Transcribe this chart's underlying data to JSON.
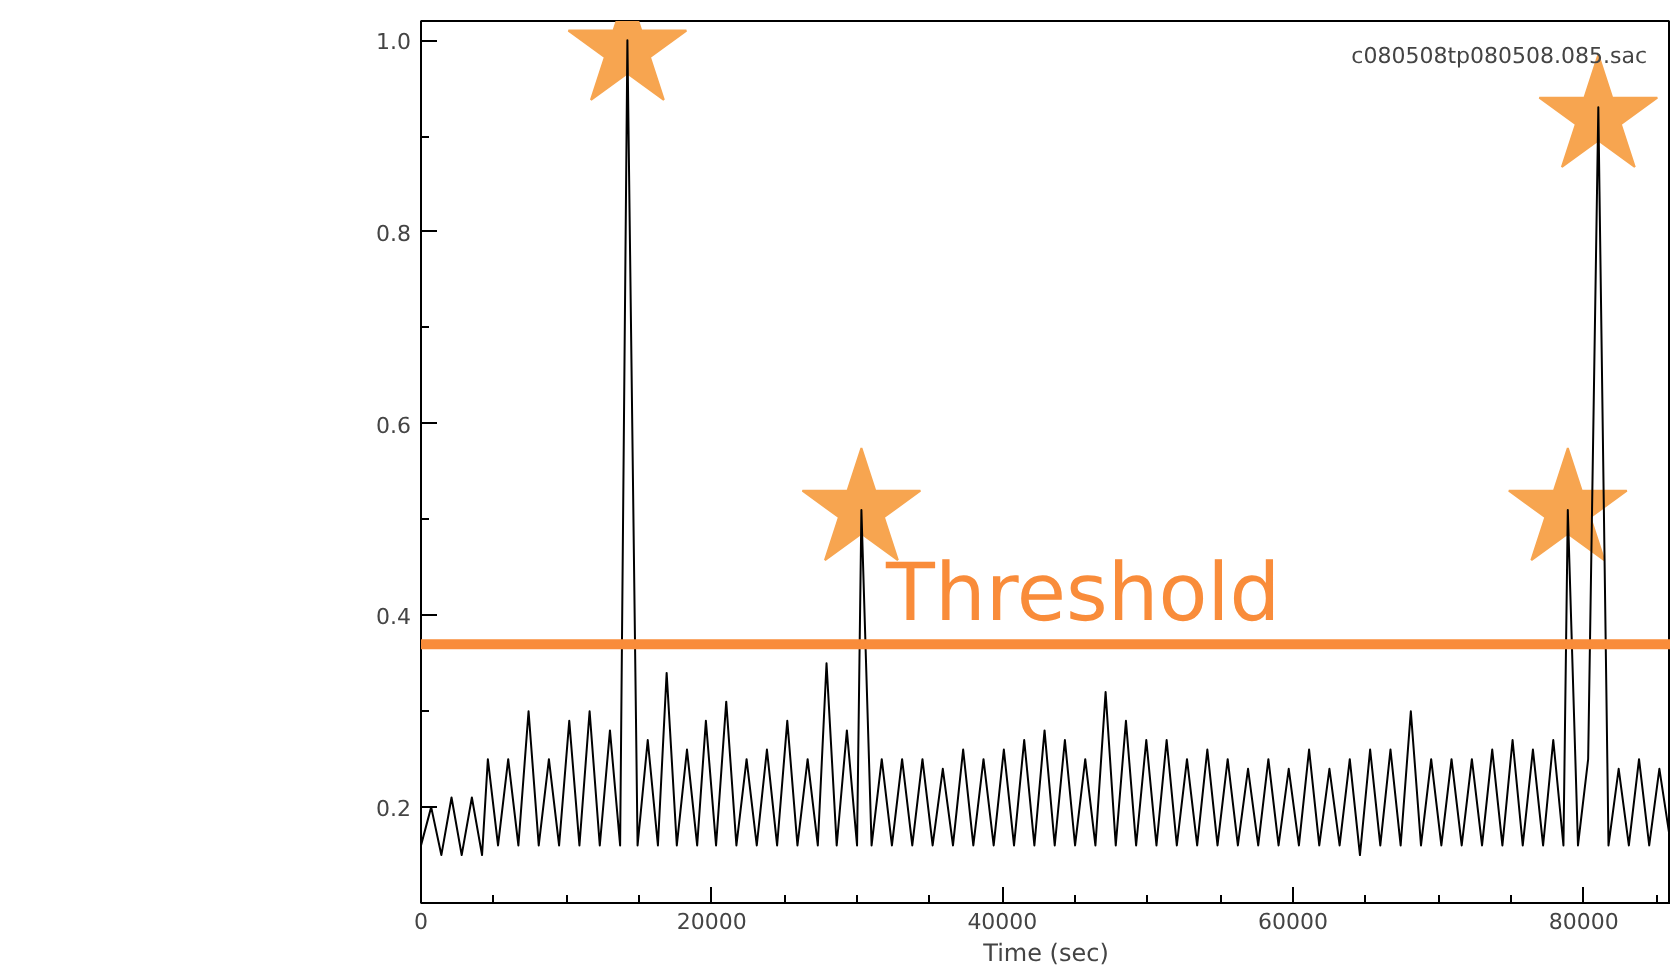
{
  "chart_data": {
    "type": "line",
    "xlabel": "Time (sec)",
    "xlim": [
      0,
      86000
    ],
    "ylim": [
      0.1,
      1.02
    ],
    "xticks": [
      0,
      20000,
      40000,
      60000,
      80000
    ],
    "yticks": [
      0.2,
      0.4,
      0.6,
      0.8,
      {
        "value": 1.0,
        "label": "1.0"
      }
    ],
    "grid": false,
    "series": [
      {
        "color": "#000000",
        "x": [
          0,
          700,
          1400,
          2100,
          2800,
          3500,
          4200,
          4600,
          5300,
          6000,
          6700,
          7400,
          8100,
          8800,
          9500,
          10200,
          10900,
          11600,
          12300,
          13000,
          13700,
          14200,
          14900,
          15600,
          16300,
          16900,
          17600,
          18300,
          19000,
          19600,
          20300,
          21000,
          21700,
          22400,
          23100,
          23800,
          24500,
          25200,
          25900,
          26600,
          27300,
          27900,
          28600,
          29300,
          30000,
          30300,
          31000,
          31700,
          32400,
          33100,
          33800,
          34500,
          35200,
          35900,
          36600,
          37300,
          38000,
          38700,
          39400,
          40100,
          40800,
          41500,
          42200,
          42900,
          43600,
          44300,
          45000,
          45700,
          46400,
          47100,
          47800,
          48500,
          49200,
          49900,
          50600,
          51300,
          52000,
          52700,
          53400,
          54100,
          54800,
          55500,
          56200,
          56900,
          57600,
          58300,
          59000,
          59700,
          60400,
          61100,
          61800,
          62500,
          63200,
          63900,
          64600,
          65300,
          66000,
          66700,
          67400,
          68100,
          68800,
          69500,
          70200,
          70900,
          71600,
          72300,
          73000,
          73700,
          74400,
          75100,
          75800,
          76500,
          77200,
          77900,
          78600,
          78900,
          79600,
          80300,
          81000,
          81700,
          82400,
          83100,
          83800,
          84500,
          85200,
          86000
        ],
        "values": [
          0.16,
          0.2,
          0.15,
          0.21,
          0.15,
          0.21,
          0.15,
          0.25,
          0.16,
          0.25,
          0.16,
          0.3,
          0.16,
          0.25,
          0.16,
          0.29,
          0.16,
          0.3,
          0.16,
          0.28,
          0.16,
          1.0,
          0.16,
          0.27,
          0.16,
          0.34,
          0.16,
          0.26,
          0.16,
          0.29,
          0.16,
          0.31,
          0.16,
          0.25,
          0.16,
          0.26,
          0.16,
          0.29,
          0.16,
          0.25,
          0.16,
          0.35,
          0.16,
          0.28,
          0.16,
          0.51,
          0.16,
          0.25,
          0.16,
          0.25,
          0.16,
          0.25,
          0.16,
          0.24,
          0.16,
          0.26,
          0.16,
          0.25,
          0.16,
          0.26,
          0.16,
          0.27,
          0.16,
          0.28,
          0.16,
          0.27,
          0.16,
          0.25,
          0.16,
          0.32,
          0.16,
          0.29,
          0.16,
          0.27,
          0.16,
          0.27,
          0.16,
          0.25,
          0.16,
          0.26,
          0.16,
          0.25,
          0.16,
          0.24,
          0.16,
          0.25,
          0.16,
          0.24,
          0.16,
          0.26,
          0.16,
          0.24,
          0.16,
          0.25,
          0.15,
          0.26,
          0.16,
          0.26,
          0.16,
          0.3,
          0.16,
          0.25,
          0.16,
          0.25,
          0.16,
          0.25,
          0.16,
          0.26,
          0.16,
          0.27,
          0.16,
          0.26,
          0.16,
          0.27,
          0.16,
          0.51,
          0.16,
          0.25,
          0.93,
          0.16,
          0.24,
          0.16,
          0.25,
          0.16,
          0.24,
          0.16
        ]
      },
      {
        "type": "scatter",
        "marker": "star",
        "color": "#f7a550",
        "x": [
          14200,
          30300,
          78900,
          81000
        ],
        "values": [
          0.99,
          0.51,
          0.51,
          0.92
        ]
      }
    ],
    "ref_lines": [
      {
        "axis": "y",
        "value": 0.37,
        "label": "Threshold",
        "color": "#f98c3a"
      }
    ],
    "annotations": [
      "c080508tp080508.085.sac"
    ]
  }
}
